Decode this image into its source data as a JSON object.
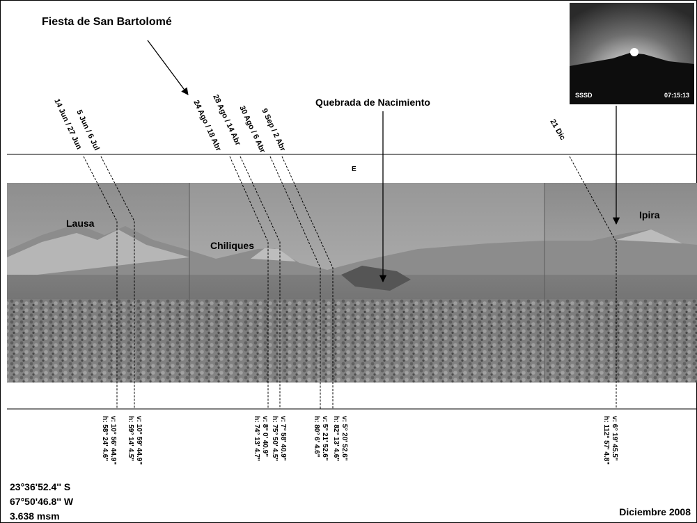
{
  "title": "Fiesta de San Bartolomé",
  "quebrada_label": "Quebrada de Nacimiento",
  "east_marker": "E",
  "peaks": {
    "lausa": "Lausa",
    "chiliques": "Chiliques",
    "ipira": "Ipira"
  },
  "inset": {
    "station": "SSSD",
    "time": "07:15:13"
  },
  "sightlines": [
    {
      "date": "14 Jun / 27 Jun",
      "v": "v: 10° 56' 44.9\"",
      "h": "h: 58° 24' 4.6\""
    },
    {
      "date": "5 Jun / 6 Jul",
      "v": "v: 10° 59' 44.9\"",
      "h": "h: 59° 14' 4.5\""
    },
    {
      "date": "24 Ago / 18 Abr",
      "v": "v: 8° 0' 40.9\"",
      "h": "h: 74° 13' 4.7\""
    },
    {
      "date": "28 Ago / 14 Abr",
      "v": "v: 7° 58' 40.9\"",
      "h": "h: 75° 50' 4.5\""
    },
    {
      "date": "30 Ago / 6 Abr",
      "v": "v: 5° 21' 52.6\"",
      "h": "h: 80° 6' 4.6\""
    },
    {
      "date": "9 Sep / 2 Abr",
      "v": "v: 5° 20' 52.6\"",
      "h": "h: 82° 13' 4.6\""
    },
    {
      "date": "21 Dic",
      "v": "v: 6° 19' 45.5\"",
      "h": "h: 112° 57' 4.8\""
    }
  ],
  "location": {
    "lat": "23°36'52.4'' S",
    "lon": "67°50'46.8'' W",
    "alt": "3.638 msm"
  },
  "date_footer": "Diciembre 2008"
}
